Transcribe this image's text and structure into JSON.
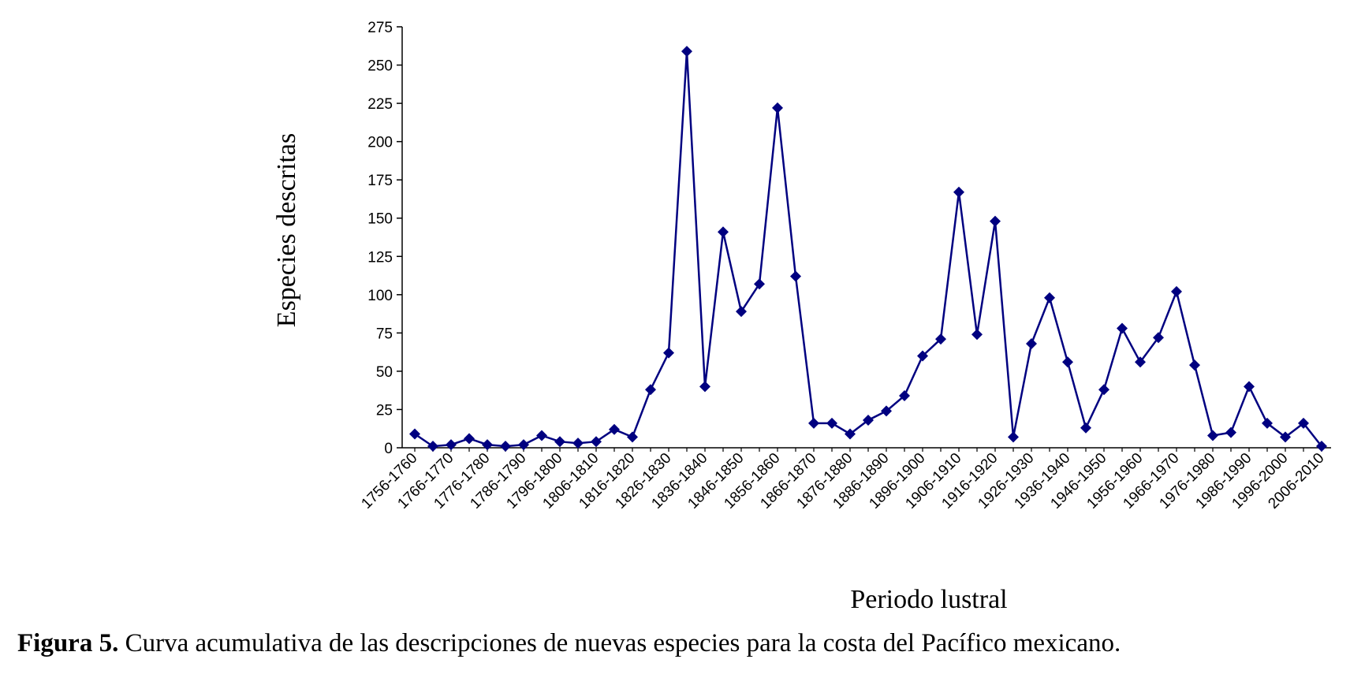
{
  "caption": {
    "label": "Figura 5.",
    "text": " Curva acumulativa de las descripciones de nuevas especies para la costa del Pacífico mexicano."
  },
  "chart_data": {
    "type": "line",
    "title": "",
    "xlabel": "Periodo lustral",
    "ylabel": "Especies descritas",
    "ylim": [
      0,
      275
    ],
    "yticks": [
      0,
      25,
      50,
      75,
      100,
      125,
      150,
      175,
      200,
      225,
      250,
      275
    ],
    "grid": false,
    "legend": "none",
    "color": "#000080",
    "tick_labels": [
      "1756-1760",
      "1766-1770",
      "1776-1780",
      "1786-1790",
      "1796-1800",
      "1806-1810",
      "1816-1820",
      "1826-1830",
      "1836-1840",
      "1846-1850",
      "1856-1860",
      "1866-1870",
      "1876-1880",
      "1886-1890",
      "1896-1900",
      "1906-1910",
      "1916-1920",
      "1926-1930",
      "1936-1940",
      "1946-1950",
      "1956-1960",
      "1966-1970",
      "1976-1980",
      "1986-1990",
      "1996-2000",
      "2006-2010"
    ],
    "x": [
      "1756-1760",
      "1761-1765",
      "1766-1770",
      "1771-1775",
      "1776-1780",
      "1781-1785",
      "1786-1790",
      "1791-1795",
      "1796-1800",
      "1801-1805",
      "1806-1810",
      "1811-1815",
      "1816-1820",
      "1821-1825",
      "1826-1830",
      "1831-1835",
      "1836-1840",
      "1841-1845",
      "1846-1850",
      "1851-1855",
      "1856-1860",
      "1861-1865",
      "1866-1870",
      "1871-1875",
      "1876-1880",
      "1881-1885",
      "1886-1890",
      "1891-1895",
      "1896-1900",
      "1901-1905",
      "1906-1910",
      "1911-1915",
      "1916-1920",
      "1921-1925",
      "1926-1930",
      "1931-1935",
      "1936-1940",
      "1941-1945",
      "1946-1950",
      "1951-1955",
      "1956-1960",
      "1961-1965",
      "1966-1970",
      "1971-1975",
      "1976-1980",
      "1981-1985",
      "1986-1990",
      "1991-1995",
      "1996-2000",
      "2001-2005",
      "2006-2010"
    ],
    "values": [
      9,
      1,
      2,
      6,
      2,
      1,
      2,
      8,
      4,
      3,
      4,
      12,
      7,
      38,
      62,
      259,
      40,
      141,
      89,
      107,
      222,
      112,
      16,
      16,
      9,
      18,
      24,
      34,
      60,
      71,
      167,
      74,
      148,
      7,
      68,
      98,
      56,
      13,
      38,
      78,
      56,
      72,
      102,
      54,
      8,
      10,
      40,
      16,
      7,
      16,
      1
    ]
  }
}
